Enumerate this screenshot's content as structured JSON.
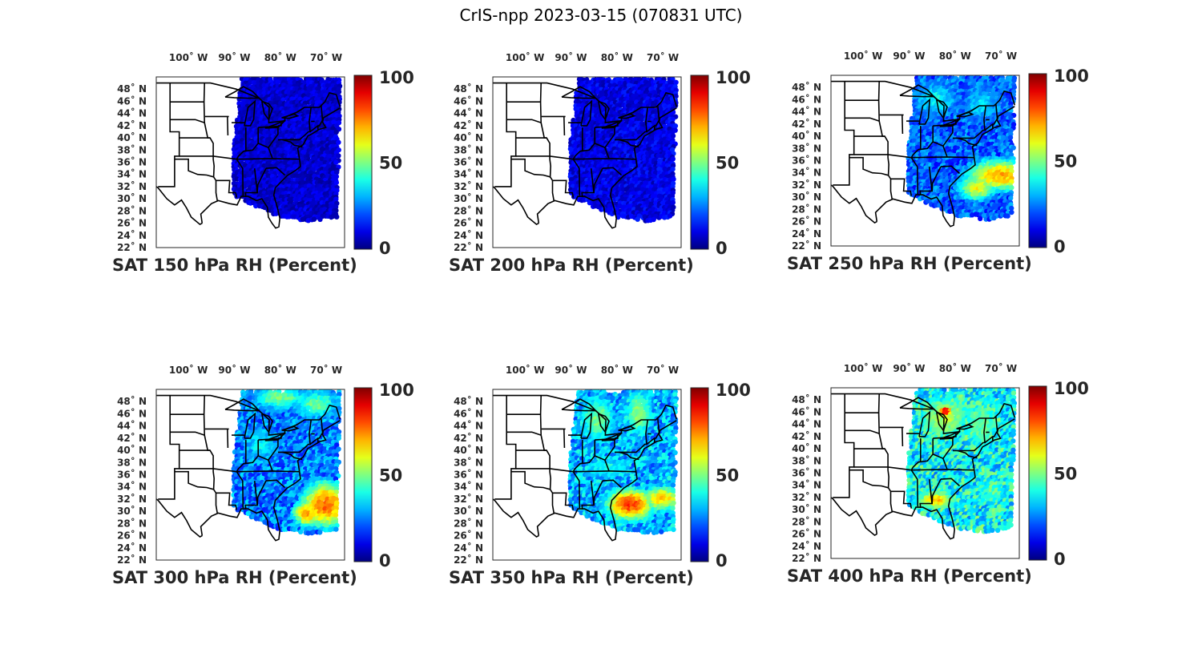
{
  "title": "CrIS-npp 2023-03-15 (070831 UTC)",
  "colormap": "jet",
  "colorbar": {
    "min": 0,
    "max": 100,
    "ticks": [
      "0",
      "50",
      "100"
    ]
  },
  "axes": {
    "lon_range": [
      -107,
      -66
    ],
    "lat_range": [
      22,
      50
    ],
    "lon_ticks": [
      {
        "value": -100,
        "deg": "100",
        "hemi": "W"
      },
      {
        "value": -90,
        "deg": "90",
        "hemi": "W"
      },
      {
        "value": -80,
        "deg": "80",
        "hemi": "W"
      },
      {
        "value": -70,
        "deg": "70",
        "hemi": "W"
      }
    ],
    "lat_ticks": [
      {
        "value": 48,
        "deg": "48",
        "hemi": "N"
      },
      {
        "value": 46,
        "deg": "46",
        "hemi": "N"
      },
      {
        "value": 44,
        "deg": "44",
        "hemi": "N"
      },
      {
        "value": 42,
        "deg": "42",
        "hemi": "N"
      },
      {
        "value": 40,
        "deg": "40",
        "hemi": "N"
      },
      {
        "value": 38,
        "deg": "38",
        "hemi": "N"
      },
      {
        "value": 36,
        "deg": "36",
        "hemi": "N"
      },
      {
        "value": 34,
        "deg": "34",
        "hemi": "N"
      },
      {
        "value": 32,
        "deg": "32",
        "hemi": "N"
      },
      {
        "value": 30,
        "deg": "30",
        "hemi": "N"
      },
      {
        "value": 28,
        "deg": "28",
        "hemi": "N"
      },
      {
        "value": 26,
        "deg": "26",
        "hemi": "N"
      },
      {
        "value": 24,
        "deg": "24",
        "hemi": "N"
      },
      {
        "value": 22,
        "deg": "22",
        "hemi": "N"
      }
    ]
  },
  "panels": [
    {
      "caption": "SAT 150 hPa RH (Percent)",
      "level_hpa": 150,
      "base_rh": 8,
      "features": []
    },
    {
      "caption": "SAT 200 hPa RH (Percent)",
      "level_hpa": 200,
      "base_rh": 10,
      "features": []
    },
    {
      "caption": "SAT 250 hPa RH (Percent)",
      "level_hpa": 250,
      "base_rh": 22,
      "features": [
        {
          "lon": -70,
          "lat": 33.5,
          "rx": 7,
          "ry": 2.5,
          "rh": 70
        },
        {
          "lon": -75,
          "lat": 31.5,
          "rx": 4,
          "ry": 2,
          "rh": 62
        },
        {
          "lon": -84,
          "lat": 46,
          "rx": 5,
          "ry": 3,
          "rh": 38
        },
        {
          "lon": -74,
          "lat": 45,
          "rx": 5,
          "ry": 3,
          "rh": 35
        }
      ]
    },
    {
      "caption": "SAT 300 hPa RH (Percent)",
      "level_hpa": 300,
      "base_rh": 25,
      "features": [
        {
          "lon": -70,
          "lat": 31,
          "rx": 5,
          "ry": 3.5,
          "rh": 78
        },
        {
          "lon": -74,
          "lat": 29.5,
          "rx": 3,
          "ry": 2,
          "rh": 72
        },
        {
          "lon": -80,
          "lat": 48.5,
          "rx": 6,
          "ry": 2,
          "rh": 50
        },
        {
          "lon": -72,
          "lat": 47.5,
          "rx": 5,
          "ry": 2.5,
          "rh": 48
        },
        {
          "lon": -84,
          "lat": 41,
          "rx": 4,
          "ry": 3,
          "rh": 38
        }
      ]
    },
    {
      "caption": "SAT 350 hPa RH (Percent)",
      "level_hpa": 350,
      "base_rh": 30,
      "features": [
        {
          "lon": -77,
          "lat": 31,
          "rx": 5,
          "ry": 2.5,
          "rh": 82
        },
        {
          "lon": -70,
          "lat": 32,
          "rx": 4,
          "ry": 2,
          "rh": 68
        },
        {
          "lon": -84,
          "lat": 45,
          "rx": 4,
          "ry": 4,
          "rh": 50
        },
        {
          "lon": -75,
          "lat": 46,
          "rx": 3,
          "ry": 4,
          "rh": 52
        },
        {
          "lon": -82,
          "lat": 37,
          "rx": 6,
          "ry": 2,
          "rh": 40
        }
      ]
    },
    {
      "caption": "SAT 400 hPa RH (Percent)",
      "level_hpa": 400,
      "base_rh": 38,
      "features": [
        {
          "lon": -82,
          "lat": 45,
          "rx": 6,
          "ry": 4,
          "rh": 55
        },
        {
          "lon": -74,
          "lat": 44,
          "rx": 5,
          "ry": 5,
          "rh": 48
        },
        {
          "lon": -84,
          "lat": 31.5,
          "rx": 4,
          "ry": 1.5,
          "rh": 70
        },
        {
          "lon": -82,
          "lat": 46,
          "rx": 1.5,
          "ry": 1,
          "rh": 90
        },
        {
          "lon": -72,
          "lat": 33,
          "rx": 5,
          "ry": 3,
          "rh": 42
        }
      ]
    }
  ]
}
